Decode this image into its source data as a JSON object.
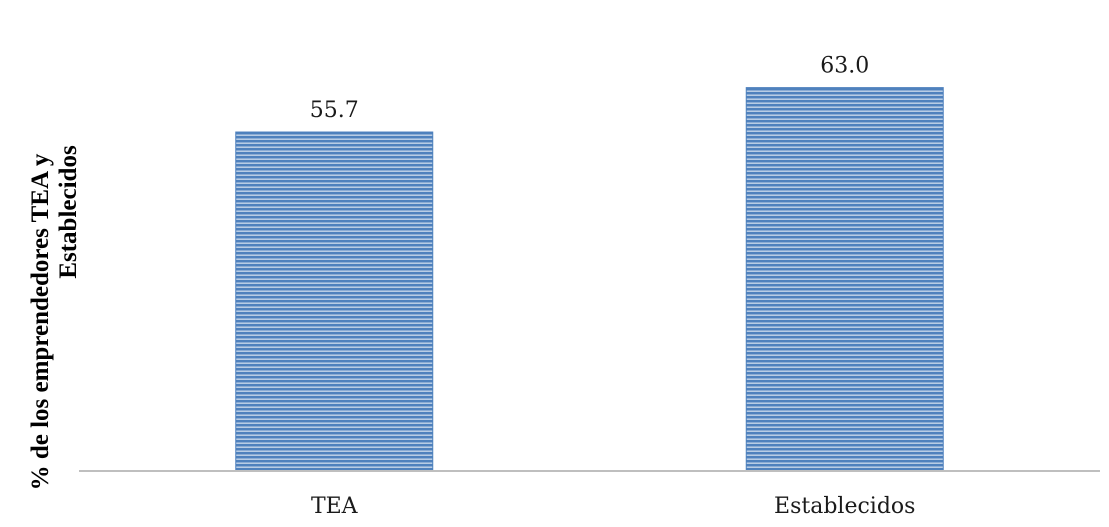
{
  "chart_data": {
    "type": "bar",
    "categories": [
      "TEA",
      "Establecidos"
    ],
    "values": [
      55.7,
      63.0
    ],
    "value_labels": [
      "55.7",
      "63.0"
    ],
    "ylabel_lines": [
      "% de los emprendedores TEA y",
      "Establecidos"
    ],
    "xlabel": "",
    "ylim": [
      0,
      70
    ],
    "grid": false,
    "legend": "none",
    "bar_color": "#4f81bd",
    "bar_stripe_color": "#ffffff",
    "axis_color": "#bfbfbf"
  }
}
